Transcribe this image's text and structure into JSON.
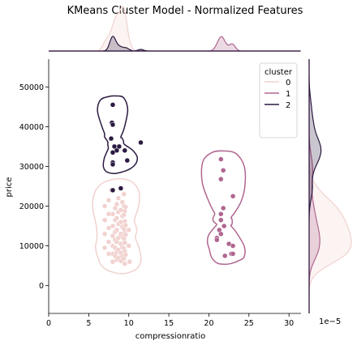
{
  "chart_data": {
    "type": "scatter",
    "title": "KMeans Cluster Model - Normalized Features",
    "xlabel": "compressionratio",
    "ylabel": "price",
    "xlim": [
      0,
      31.5
    ],
    "ylim": [
      -7000,
      57000
    ],
    "xticks": [
      "0",
      "5",
      "10",
      "15",
      "20",
      "25",
      "30"
    ],
    "yticks": [
      "0",
      "10000",
      "20000",
      "30000",
      "40000",
      "50000"
    ],
    "offset_label": "1e−5",
    "legend": {
      "title": "cluster",
      "position": "top-right",
      "entries": [
        "0",
        "1",
        "2"
      ]
    },
    "colors": {
      "0": "#f1d2cf",
      "1": "#b06690",
      "2": "#2b1a40"
    },
    "series": [
      {
        "name": "0",
        "points": [
          [
            8.0,
            6000
          ],
          [
            8.0,
            8000
          ],
          [
            8.0,
            10000
          ],
          [
            8.0,
            12500
          ],
          [
            8.0,
            15000
          ],
          [
            8.0,
            18000
          ],
          [
            8.3,
            7500
          ],
          [
            8.3,
            9500
          ],
          [
            8.3,
            11500
          ],
          [
            8.3,
            13500
          ],
          [
            8.3,
            16500
          ],
          [
            8.3,
            19500
          ],
          [
            8.5,
            6500
          ],
          [
            8.5,
            8500
          ],
          [
            8.5,
            11000
          ],
          [
            8.5,
            14000
          ],
          [
            8.5,
            17000
          ],
          [
            8.5,
            20500
          ],
          [
            8.7,
            7000
          ],
          [
            8.7,
            9000
          ],
          [
            8.7,
            12000
          ],
          [
            8.7,
            15500
          ],
          [
            8.7,
            18500
          ],
          [
            8.7,
            22000
          ],
          [
            9.0,
            6200
          ],
          [
            9.0,
            8200
          ],
          [
            9.0,
            10500
          ],
          [
            9.0,
            13000
          ],
          [
            9.0,
            16000
          ],
          [
            9.0,
            19000
          ],
          [
            9.0,
            24500
          ],
          [
            9.2,
            7300
          ],
          [
            9.2,
            9700
          ],
          [
            9.2,
            12300
          ],
          [
            9.2,
            14800
          ],
          [
            9.2,
            17500
          ],
          [
            9.2,
            21000
          ],
          [
            9.4,
            6800
          ],
          [
            9.4,
            9300
          ],
          [
            9.4,
            11800
          ],
          [
            9.4,
            14300
          ],
          [
            9.4,
            17800
          ],
          [
            9.4,
            20000
          ],
          [
            9.4,
            23000
          ],
          [
            9.5,
            5500
          ],
          [
            9.5,
            8600
          ],
          [
            9.5,
            10800
          ],
          [
            9.5,
            13300
          ],
          [
            9.5,
            16200
          ],
          [
            9.5,
            18800
          ],
          [
            9.6,
            7800
          ],
          [
            9.6,
            12800
          ],
          [
            9.6,
            15200
          ],
          [
            9.6,
            19800
          ],
          [
            7.0,
            9500
          ],
          [
            7.0,
            13000
          ],
          [
            7.0,
            16500
          ],
          [
            7.0,
            20000
          ],
          [
            7.5,
            8000
          ],
          [
            7.5,
            11000
          ],
          [
            7.5,
            14500
          ],
          [
            7.5,
            18000
          ],
          [
            7.5,
            21500
          ],
          [
            7.8,
            24000
          ],
          [
            10.0,
            10000
          ],
          [
            10.0,
            14000
          ],
          [
            10.1,
            6000
          ]
        ]
      },
      {
        "name": "1",
        "points": [
          [
            21.5,
            31800
          ],
          [
            21.8,
            29000
          ],
          [
            21.5,
            26800
          ],
          [
            23.0,
            22500
          ],
          [
            21.8,
            19500
          ],
          [
            21.5,
            18000
          ],
          [
            21.5,
            16500
          ],
          [
            21.9,
            15000
          ],
          [
            21.3,
            14000
          ],
          [
            21.5,
            13000
          ],
          [
            21.0,
            12000
          ],
          [
            22.5,
            10500
          ],
          [
            23.0,
            10000
          ],
          [
            22.0,
            7500
          ],
          [
            22.8,
            8000
          ],
          [
            23.0,
            8000
          ],
          [
            21.0,
            11500
          ]
        ]
      },
      {
        "name": "2",
        "points": [
          [
            8.0,
            45500
          ],
          [
            7.9,
            41000
          ],
          [
            8.0,
            40500
          ],
          [
            7.8,
            37000
          ],
          [
            8.2,
            35000
          ],
          [
            8.5,
            34000
          ],
          [
            8.8,
            35000
          ],
          [
            8.0,
            33500
          ],
          [
            9.5,
            34000
          ],
          [
            9.8,
            31500
          ],
          [
            8.0,
            31000
          ],
          [
            8.0,
            30500
          ],
          [
            8.0,
            24000
          ],
          [
            9.0,
            24500
          ],
          [
            11.5,
            36000
          ]
        ]
      }
    ]
  }
}
